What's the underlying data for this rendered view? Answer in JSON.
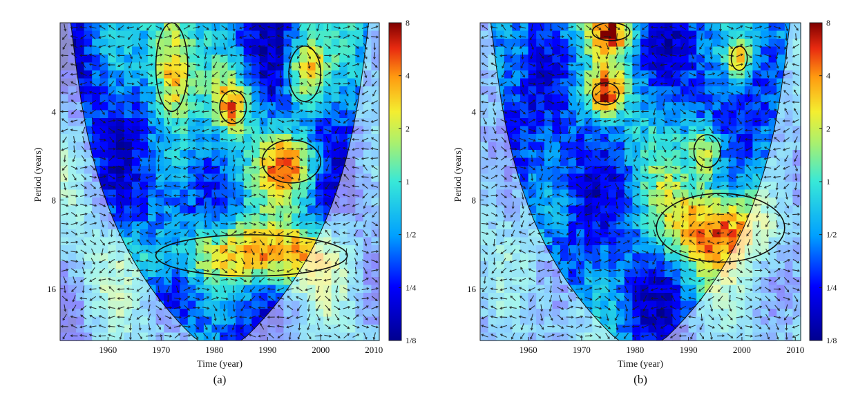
{
  "chart_data": [
    {
      "type": "heatmap",
      "panel_label": "(a)",
      "title": "",
      "xlabel": "Time (year)",
      "ylabel": "Period (years)",
      "xlim": [
        1951,
        2011
      ],
      "ylim_period": [
        2,
        24
      ],
      "y_scale": "log2",
      "x_ticks": [
        1960,
        1970,
        1980,
        1990,
        2000,
        2010
      ],
      "y_ticks": [
        4,
        8,
        16
      ],
      "colorbar": {
        "scale": "log2",
        "ticks": [
          "1/8",
          "1/4",
          "1/2",
          "1",
          "2",
          "4",
          "8"
        ],
        "range": [
          0.125,
          8
        ]
      },
      "colors": {
        "high": "#8b0000",
        "mid_high": "#f7a21b",
        "mid": "#9fe07a",
        "mid_low": "#27c8e6",
        "low": "#00008f"
      },
      "grid": false,
      "legend": "none",
      "cone_of_influence": true,
      "phase_arrows": true,
      "significant_regions": [
        {
          "x_range": [
            1969,
            1975
          ],
          "period_range": [
            2.0,
            4.0
          ]
        },
        {
          "x_range": [
            1981,
            1986
          ],
          "period_range": [
            3.4,
            4.4
          ]
        },
        {
          "x_range": [
            1994,
            2000
          ],
          "period_range": [
            2.4,
            3.7
          ]
        },
        {
          "x_range": [
            1989,
            2000
          ],
          "period_range": [
            5.0,
            7.0
          ]
        },
        {
          "x_range": [
            1969,
            2005
          ],
          "period_range": [
            10.5,
            14.5
          ]
        }
      ]
    },
    {
      "type": "heatmap",
      "panel_label": "(b)",
      "title": "",
      "xlabel": "Time (year)",
      "ylabel": "Period (years)",
      "xlim": [
        1951,
        2011
      ],
      "ylim_period": [
        2,
        24
      ],
      "y_scale": "log2",
      "x_ticks": [
        1960,
        1970,
        1980,
        1990,
        2000,
        2010
      ],
      "y_ticks": [
        4,
        8,
        16
      ],
      "colorbar": {
        "scale": "log2",
        "ticks": [
          "1/8",
          "1/4",
          "1/2",
          "1",
          "2",
          "4",
          "8"
        ],
        "range": [
          0.125,
          8
        ]
      },
      "colors": {
        "high": "#8b0000",
        "mid_high": "#f7a21b",
        "mid": "#9fe07a",
        "mid_low": "#27c8e6",
        "low": "#00008f"
      },
      "grid": false,
      "legend": "none",
      "cone_of_influence": true,
      "phase_arrows": true,
      "significant_regions": [
        {
          "x_range": [
            1972,
            1979
          ],
          "period_range": [
            2.0,
            2.3
          ]
        },
        {
          "x_range": [
            1972,
            1977
          ],
          "period_range": [
            3.2,
            3.8
          ]
        },
        {
          "x_range": [
            1998,
            2001
          ],
          "period_range": [
            2.4,
            2.9
          ]
        },
        {
          "x_range": [
            1991,
            1996
          ],
          "period_range": [
            4.8,
            6.2
          ]
        },
        {
          "x_range": [
            1984,
            2008
          ],
          "period_range": [
            7.6,
            13.0
          ]
        }
      ]
    }
  ]
}
